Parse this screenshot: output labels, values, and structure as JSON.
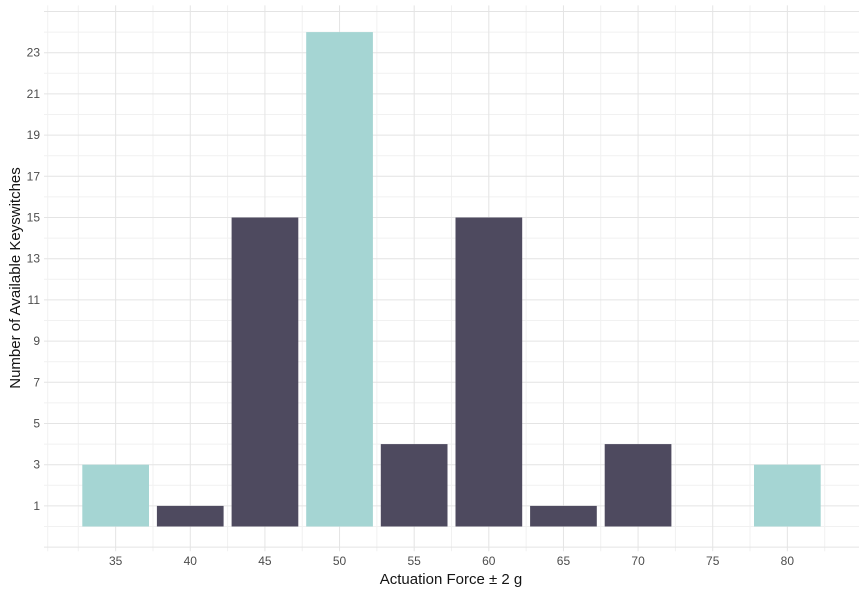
{
  "chart_data": {
    "type": "bar",
    "title": "",
    "xlabel": "Actuation Force ± 2 g",
    "ylabel": "Number of Available Keyswitches",
    "categories": [
      35,
      40,
      45,
      50,
      55,
      60,
      65,
      70,
      80
    ],
    "values": [
      3,
      1,
      15,
      24,
      4,
      15,
      1,
      4,
      3
    ],
    "bar_color_keys": [
      "teal",
      "dark",
      "dark",
      "teal",
      "dark",
      "dark",
      "dark",
      "dark",
      "teal"
    ],
    "highlighted_bins": [
      35,
      50,
      80
    ],
    "palette": {
      "teal": "#A5D5D3",
      "dark": "#4E4A5F"
    },
    "bin_width": 5,
    "bar_width_units": 4.47,
    "x_ticks": [
      35,
      40,
      45,
      50,
      55,
      60,
      65,
      70,
      75,
      80
    ],
    "y_ticks": [
      1,
      3,
      5,
      7,
      9,
      11,
      13,
      15,
      17,
      19,
      21,
      23
    ],
    "xlim": [
      30.2,
      84.8
    ],
    "ylim": [
      -1.2,
      25.3
    ],
    "grid": "major+minor",
    "legend": "none",
    "background_color": "#FFFFFF",
    "grid_major_color": "#E4E4E4",
    "grid_minor_color": "#F1F1F1",
    "tick_label_color": "#4D4D4D",
    "axis_title_color": "#141414"
  }
}
